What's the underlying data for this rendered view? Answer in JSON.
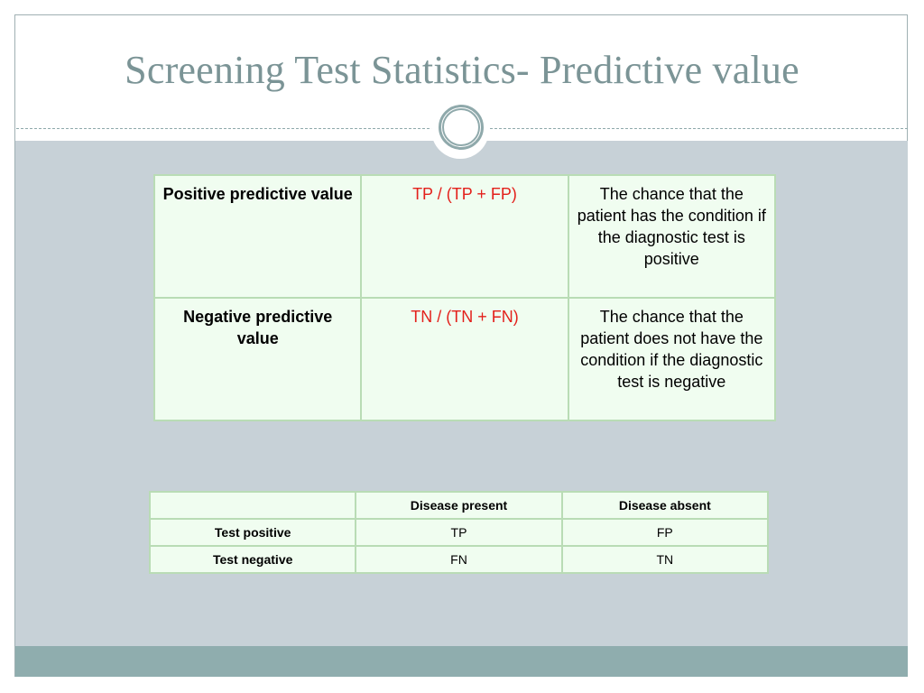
{
  "slide": {
    "title": "Screening Test Statistics- Predictive value"
  },
  "definitions": {
    "rows": [
      {
        "term": "Positive predictive value",
        "formula": "TP / (TP + FP)",
        "description": "The chance that the patient has the condition if the diagnostic test is positive"
      },
      {
        "term": "Negative predictive value",
        "formula": "TN / (TN + FN)",
        "description": "The chance that the patient does not have the condition if the diagnostic test is negative"
      }
    ],
    "formula_color": "#e3201b"
  },
  "contingency": {
    "headers": [
      "",
      "Disease present",
      "Disease absent"
    ],
    "rows": [
      {
        "label": "Test positive",
        "present": "TP",
        "absent": "FP"
      },
      {
        "label": "Test negative",
        "present": "FN",
        "absent": "TN"
      }
    ]
  },
  "theme": {
    "title_color": "#7b9496",
    "content_bg": "#c7d1d7",
    "footer_bar": "#8fadae",
    "table_bg": "#f0fdf0",
    "table_border": "#b9dcb5"
  }
}
